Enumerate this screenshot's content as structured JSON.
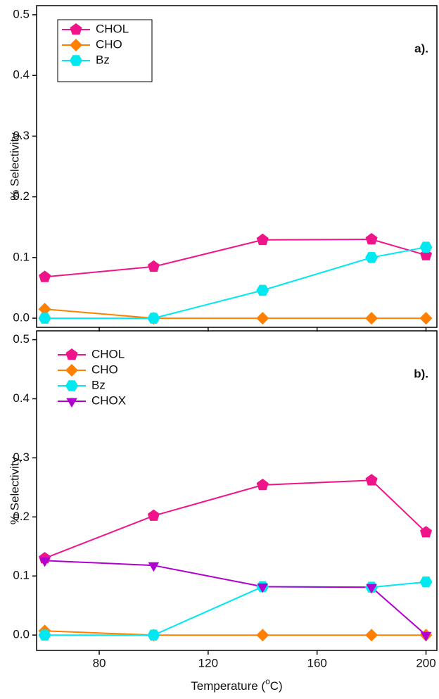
{
  "chart_data": [
    {
      "type": "line",
      "annotation": "a).",
      "ylabel": "% Selectivity",
      "x": [
        60,
        100,
        140,
        180,
        200
      ],
      "xlim": [
        57,
        204
      ],
      "xticks": [
        80,
        120,
        160,
        200
      ],
      "xtick_labels": false,
      "ylim": [
        -0.015,
        0.515
      ],
      "yticks": [
        {
          "value": 0,
          "label": "0.0"
        },
        0.1,
        0.2,
        0.3,
        0.4,
        0.5
      ],
      "legend": "upper left",
      "legend_frame": true,
      "series": [
        {
          "name": "CHOL",
          "color": "#f0148a",
          "marker": "pentagon",
          "values": [
            0.068,
            0.085,
            0.129,
            0.13,
            0.104
          ]
        },
        {
          "name": "CHO",
          "color": "#ff8000",
          "marker": "diamond",
          "values": [
            0.015,
            0,
            0,
            0,
            0
          ]
        },
        {
          "name": "Bz",
          "color": "#00e8f0",
          "marker": "hexagon",
          "values": [
            0,
            0,
            0.046,
            0.1,
            0.117
          ]
        }
      ]
    },
    {
      "type": "line",
      "annotation": "b).",
      "ylabel": "% Selectivity",
      "xlabel": [
        "Temperature (",
        "o",
        "C)"
      ],
      "x": [
        60,
        100,
        140,
        180,
        200
      ],
      "xlim": [
        57,
        204
      ],
      "xticks": [
        80,
        120,
        160,
        200
      ],
      "xtick_labels": true,
      "ylim": [
        -0.026,
        0.515
      ],
      "yticks": [
        {
          "value": 0,
          "label": "0.0"
        },
        0.1,
        0.2,
        0.3,
        0.4,
        0.5
      ],
      "legend": "upper left",
      "legend_frame": false,
      "series": [
        {
          "name": "CHOL",
          "color": "#f0148a",
          "marker": "pentagon",
          "values": [
            0.13,
            0.202,
            0.254,
            0.262,
            0.174
          ]
        },
        {
          "name": "CHO",
          "color": "#ff8000",
          "marker": "diamond",
          "values": [
            0.007,
            0,
            0,
            0,
            0
          ]
        },
        {
          "name": "Bz",
          "color": "#00e8f0",
          "marker": "hexagon",
          "values": [
            0,
            0,
            0.082,
            0.081,
            0.09
          ]
        },
        {
          "name": "CHOX",
          "color": "#b000d0",
          "marker": "triangle-down",
          "values": [
            0.126,
            0.118,
            0.082,
            0.081,
            0
          ]
        }
      ]
    }
  ]
}
